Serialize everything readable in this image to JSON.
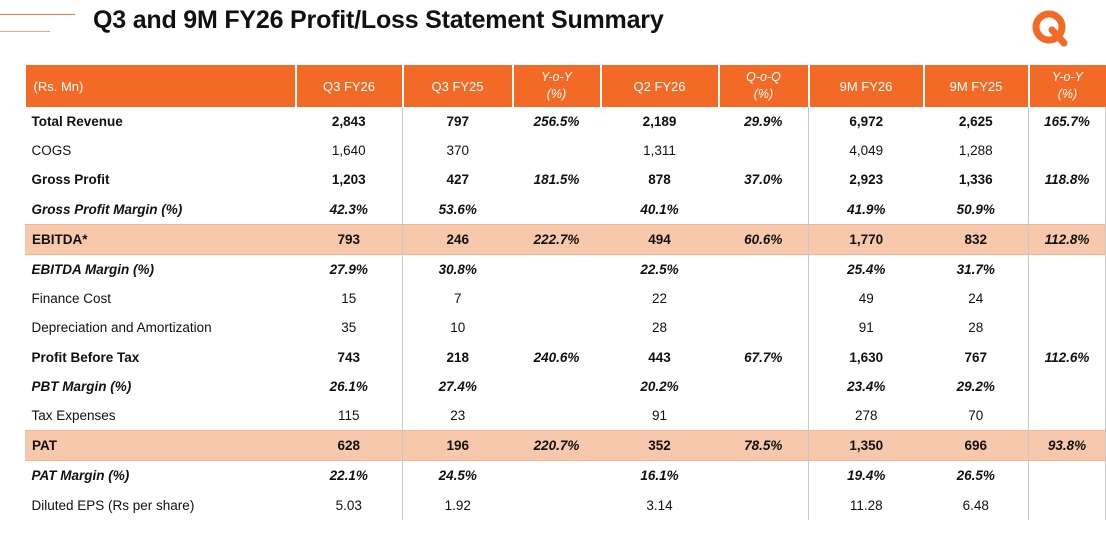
{
  "header": {
    "title": "Q3 and 9M FY26 Profit/Loss Statement Summary",
    "logo_letter": "Q",
    "brand_color": "#f26a25"
  },
  "table": {
    "columns": [
      "(Rs. Mn)",
      "Q3 FY26",
      "Q3 FY25",
      "Y-o-Y",
      "(%)",
      "Q2 FY26",
      "Q-o-Q",
      "(%)",
      "9M FY26",
      "9M FY25",
      "Y-o-Y",
      "(%)"
    ],
    "header": {
      "unit": "(Rs. Mn)",
      "q3fy26": "Q3 FY26",
      "q3fy25": "Q3 FY25",
      "yoy_line1": "Y-o-Y",
      "yoy_line2": "(%)",
      "q2fy26": "Q2 FY26",
      "qoq_line1": "Q-o-Q",
      "qoq_line2": "(%)",
      "m9fy26": "9M FY26",
      "m9fy25": "9M FY25",
      "yoy9_line1": "Y-o-Y",
      "yoy9_line2": "(%)"
    },
    "rows": [
      {
        "label": "Total Revenue",
        "q3fy26": "2,843",
        "q3fy25": "797",
        "yoy": "256.5%",
        "q2fy26": "2,189",
        "qoq": "29.9%",
        "m9fy26": "6,972",
        "m9fy25": "2,625",
        "yoy9": "165.7%"
      },
      {
        "label": "COGS",
        "q3fy26": "1,640",
        "q3fy25": "370",
        "yoy": "",
        "q2fy26": "1,311",
        "qoq": "",
        "m9fy26": "4,049",
        "m9fy25": "1,288",
        "yoy9": ""
      },
      {
        "label": "Gross Profit",
        "q3fy26": "1,203",
        "q3fy25": "427",
        "yoy": "181.5%",
        "q2fy26": "878",
        "qoq": "37.0%",
        "m9fy26": "2,923",
        "m9fy25": "1,336",
        "yoy9": "118.8%"
      },
      {
        "label": "Gross Profit Margin (%)",
        "q3fy26": "42.3%",
        "q3fy25": "53.6%",
        "yoy": "",
        "q2fy26": "40.1%",
        "qoq": "",
        "m9fy26": "41.9%",
        "m9fy25": "50.9%",
        "yoy9": ""
      },
      {
        "label": "EBITDA*",
        "q3fy26": "793",
        "q3fy25": "246",
        "yoy": "222.7%",
        "q2fy26": "494",
        "qoq": "60.6%",
        "m9fy26": "1,770",
        "m9fy25": "832",
        "yoy9": "112.8%"
      },
      {
        "label": "EBITDA Margin (%)",
        "q3fy26": "27.9%",
        "q3fy25": "30.8%",
        "yoy": "",
        "q2fy26": "22.5%",
        "qoq": "",
        "m9fy26": "25.4%",
        "m9fy25": "31.7%",
        "yoy9": ""
      },
      {
        "label": "Finance Cost",
        "q3fy26": "15",
        "q3fy25": "7",
        "yoy": "",
        "q2fy26": "22",
        "qoq": "",
        "m9fy26": "49",
        "m9fy25": "24",
        "yoy9": ""
      },
      {
        "label": "Depreciation and Amortization",
        "q3fy26": "35",
        "q3fy25": "10",
        "yoy": "",
        "q2fy26": "28",
        "qoq": "",
        "m9fy26": "91",
        "m9fy25": "28",
        "yoy9": ""
      },
      {
        "label": "Profit Before Tax",
        "q3fy26": "743",
        "q3fy25": "218",
        "yoy": "240.6%",
        "q2fy26": "443",
        "qoq": "67.7%",
        "m9fy26": "1,630",
        "m9fy25": "767",
        "yoy9": "112.6%"
      },
      {
        "label": "PBT Margin (%)",
        "q3fy26": "26.1%",
        "q3fy25": "27.4%",
        "yoy": "",
        "q2fy26": "20.2%",
        "qoq": "",
        "m9fy26": "23.4%",
        "m9fy25": "29.2%",
        "yoy9": ""
      },
      {
        "label": "Tax Expenses",
        "q3fy26": "115",
        "q3fy25": "23",
        "yoy": "",
        "q2fy26": "91",
        "qoq": "",
        "m9fy26": "278",
        "m9fy25": "70",
        "yoy9": ""
      },
      {
        "label": "PAT",
        "q3fy26": "628",
        "q3fy25": "196",
        "yoy": "220.7%",
        "q2fy26": "352",
        "qoq": "78.5%",
        "m9fy26": "1,350",
        "m9fy25": "696",
        "yoy9": "93.8%"
      },
      {
        "label": "PAT Margin (%)",
        "q3fy26": "22.1%",
        "q3fy25": "24.5%",
        "yoy": "",
        "q2fy26": "16.1%",
        "qoq": "",
        "m9fy26": "19.4%",
        "m9fy25": "26.5%",
        "yoy9": ""
      },
      {
        "label": "Diluted EPS (Rs per share)",
        "q3fy26": "5.03",
        "q3fy25": "1.92",
        "yoy": "",
        "q2fy26": "3.14",
        "qoq": "",
        "m9fy26": "11.28",
        "m9fy25": "6.48",
        "yoy9": ""
      }
    ]
  }
}
